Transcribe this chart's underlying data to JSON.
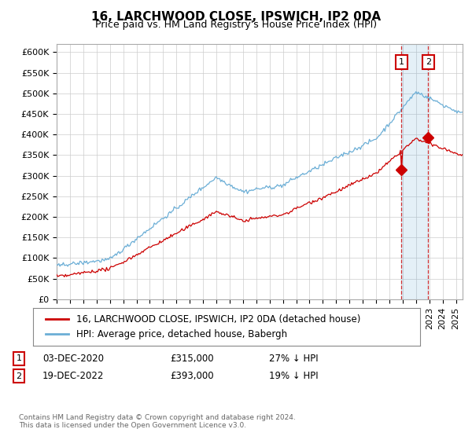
{
  "title": "16, LARCHWOOD CLOSE, IPSWICH, IP2 0DA",
  "subtitle": "Price paid vs. HM Land Registry's House Price Index (HPI)",
  "ylim": [
    0,
    620000
  ],
  "yticks": [
    0,
    50000,
    100000,
    150000,
    200000,
    250000,
    300000,
    350000,
    400000,
    450000,
    500000,
    550000,
    600000
  ],
  "ytick_labels": [
    "£0",
    "£50K",
    "£100K",
    "£150K",
    "£200K",
    "£250K",
    "£300K",
    "£350K",
    "£400K",
    "£450K",
    "£500K",
    "£550K",
    "£600K"
  ],
  "hpi_color": "#6baed6",
  "price_color": "#cc0000",
  "sale1_date": "03-DEC-2020",
  "sale1_price": "£315,000",
  "sale1_note": "27% ↓ HPI",
  "sale1_year": 2020,
  "sale1_month": 11,
  "sale1_value": 315000,
  "sale2_date": "19-DEC-2022",
  "sale2_price": "£393,000",
  "sale2_note": "19% ↓ HPI",
  "sale2_year": 2022,
  "sale2_month": 11,
  "sale2_value": 393000,
  "legend_label1": "16, LARCHWOOD CLOSE, IPSWICH, IP2 0DA (detached house)",
  "legend_label2": "HPI: Average price, detached house, Babergh",
  "footer": "Contains HM Land Registry data © Crown copyright and database right 2024.\nThis data is licensed under the Open Government Licence v3.0.",
  "background_color": "#ffffff",
  "grid_color": "#cccccc",
  "title_fontsize": 11,
  "subtitle_fontsize": 9,
  "tick_fontsize": 8,
  "legend_fontsize": 8.5,
  "start_year": 1995,
  "end_year": 2025
}
